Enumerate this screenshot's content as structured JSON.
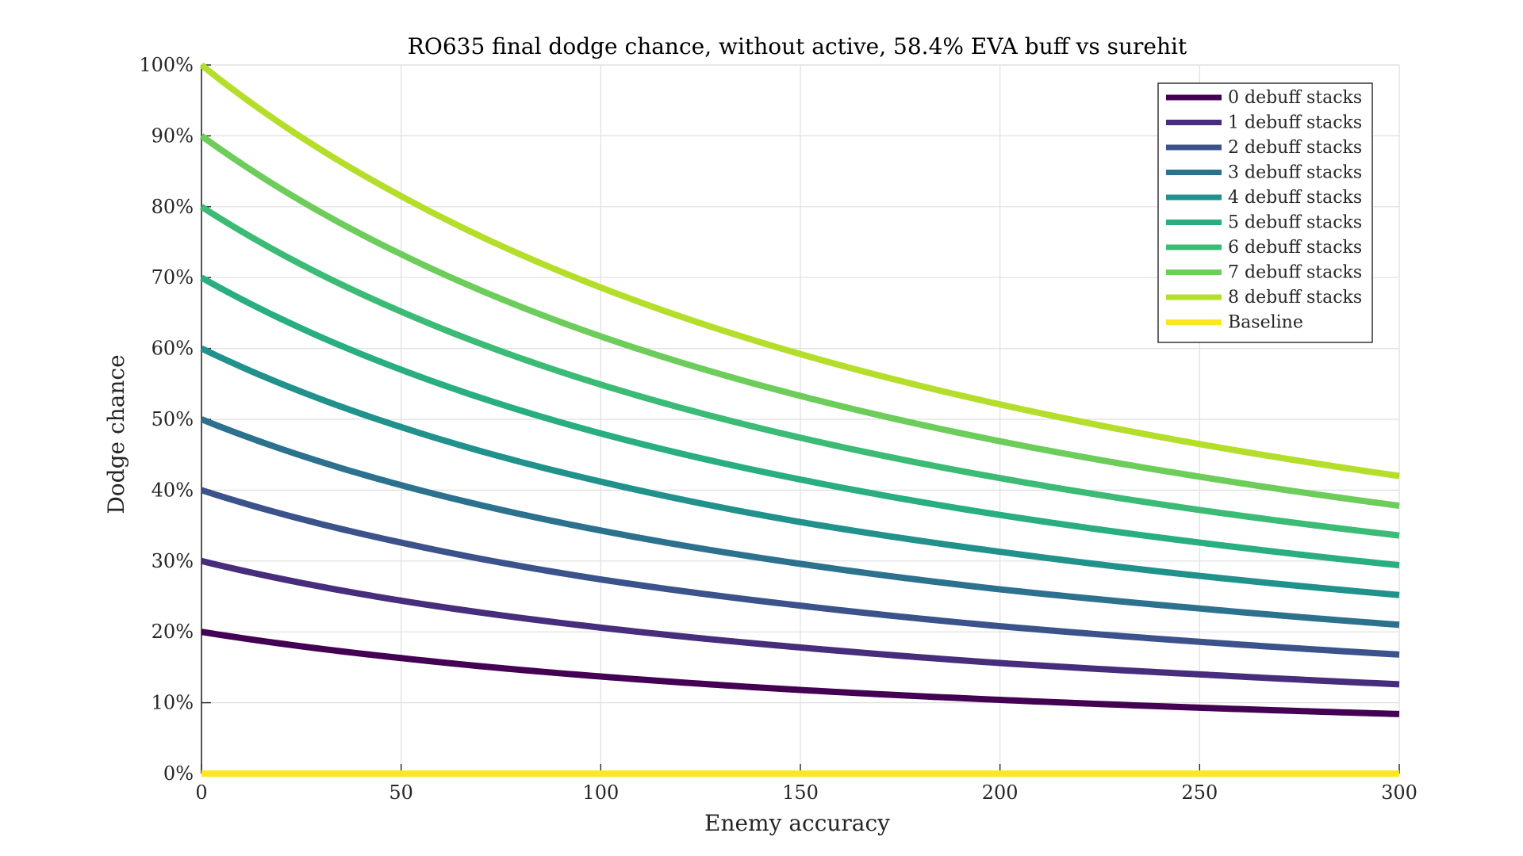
{
  "chart_data": {
    "type": "line",
    "title": "RO635 final dodge chance, without active, 58.4% EVA buff vs surehit",
    "xlabel": "Enemy accuracy",
    "ylabel": "Dodge chance",
    "xlim": [
      0,
      300
    ],
    "ylim": [
      0,
      100
    ],
    "x_ticks": [
      0,
      50,
      100,
      150,
      200,
      250,
      300
    ],
    "x_tick_labels": [
      "0",
      "50",
      "100",
      "150",
      "200",
      "250",
      "300"
    ],
    "y_ticks": [
      0,
      10,
      20,
      30,
      40,
      50,
      60,
      70,
      80,
      90,
      100
    ],
    "y_tick_labels": [
      "0%",
      "10%",
      "20%",
      "30%",
      "40%",
      "50%",
      "60%",
      "70%",
      "80%",
      "90%",
      "100%"
    ],
    "grid": true,
    "legend_position": "top-right",
    "x": [
      0,
      50,
      100,
      150,
      200,
      250,
      300
    ],
    "series": [
      {
        "name": "0 debuff stacks",
        "color": "#440154",
        "values": [
          20,
          16.3,
          13.7,
          11.8,
          10.4,
          9.3,
          8.4
        ]
      },
      {
        "name": "1 debuff stacks",
        "color": "#472d7b",
        "values": [
          30,
          24.4,
          20.6,
          17.8,
          15.6,
          14.0,
          12.6
        ]
      },
      {
        "name": "2 debuff stacks",
        "color": "#3b528b",
        "values": [
          40,
          32.6,
          27.4,
          23.7,
          20.8,
          18.6,
          16.8
        ]
      },
      {
        "name": "3 debuff stacks",
        "color": "#2c728e",
        "values": [
          50,
          40.7,
          34.3,
          29.6,
          26.0,
          23.3,
          21.0
        ]
      },
      {
        "name": "4 debuff stacks",
        "color": "#21918c",
        "values": [
          60,
          48.9,
          41.2,
          35.5,
          31.3,
          27.9,
          25.2
        ]
      },
      {
        "name": "5 debuff stacks",
        "color": "#28ae80",
        "values": [
          70,
          57.0,
          48.0,
          41.5,
          36.5,
          32.6,
          29.4
        ]
      },
      {
        "name": "6 debuff stacks",
        "color": "#3bbb75",
        "values": [
          80,
          65.2,
          54.9,
          47.4,
          41.7,
          37.2,
          33.6
        ]
      },
      {
        "name": "7 debuff stacks",
        "color": "#6ccd5a",
        "values": [
          90,
          73.3,
          61.7,
          53.3,
          46.9,
          41.9,
          37.8
        ]
      },
      {
        "name": "8 debuff stacks",
        "color": "#b5de2b",
        "values": [
          100,
          81.5,
          68.6,
          59.2,
          52.1,
          46.5,
          42.0
        ]
      },
      {
        "name": "Baseline",
        "color": "#fde725",
        "values": [
          0,
          0,
          0,
          0,
          0,
          0,
          0
        ]
      }
    ]
  }
}
